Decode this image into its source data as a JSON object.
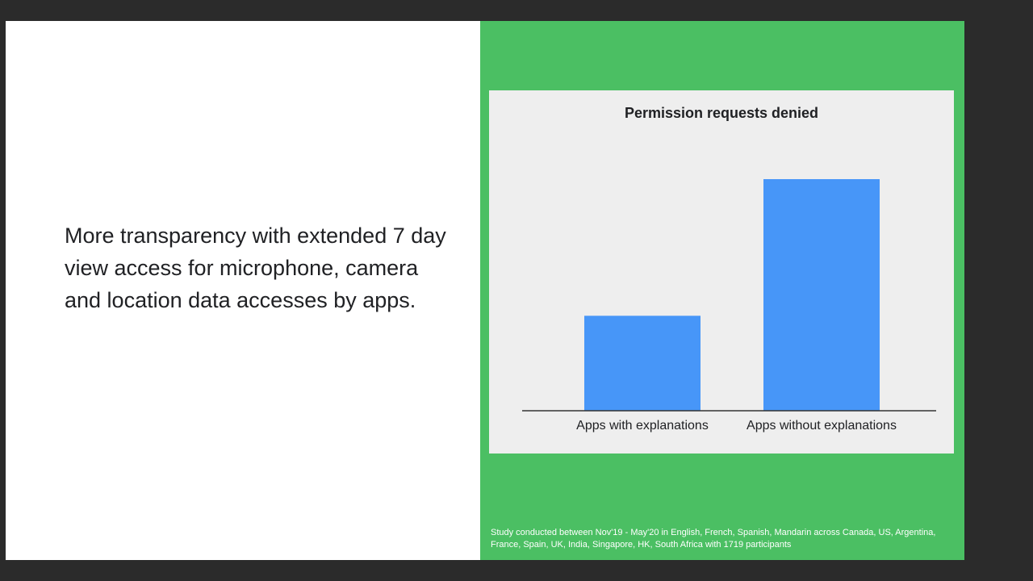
{
  "slide": {
    "headline": "More transparency with extended 7 day view access for microphone, camera and location data accesses by apps.",
    "footnote": "Study conducted between Nov'19 - May'20 in English, French, Spanish, Mandarin across Canada, US, Argentina, France, Spain, UK, India, Singapore, HK, South Africa with 1719 participants"
  },
  "colors": {
    "panel_green": "#4bbf63",
    "bar_blue": "#4796f8",
    "card_bg": "#eeeeee"
  },
  "chart_data": {
    "type": "bar",
    "title": "Permission requests denied",
    "categories": [
      "Apps with explanations",
      "Apps without explanations"
    ],
    "values": [
      41,
      100
    ],
    "ylim": [
      0,
      100
    ],
    "xlabel": "",
    "ylabel": "",
    "grid": false,
    "legend": "none"
  }
}
